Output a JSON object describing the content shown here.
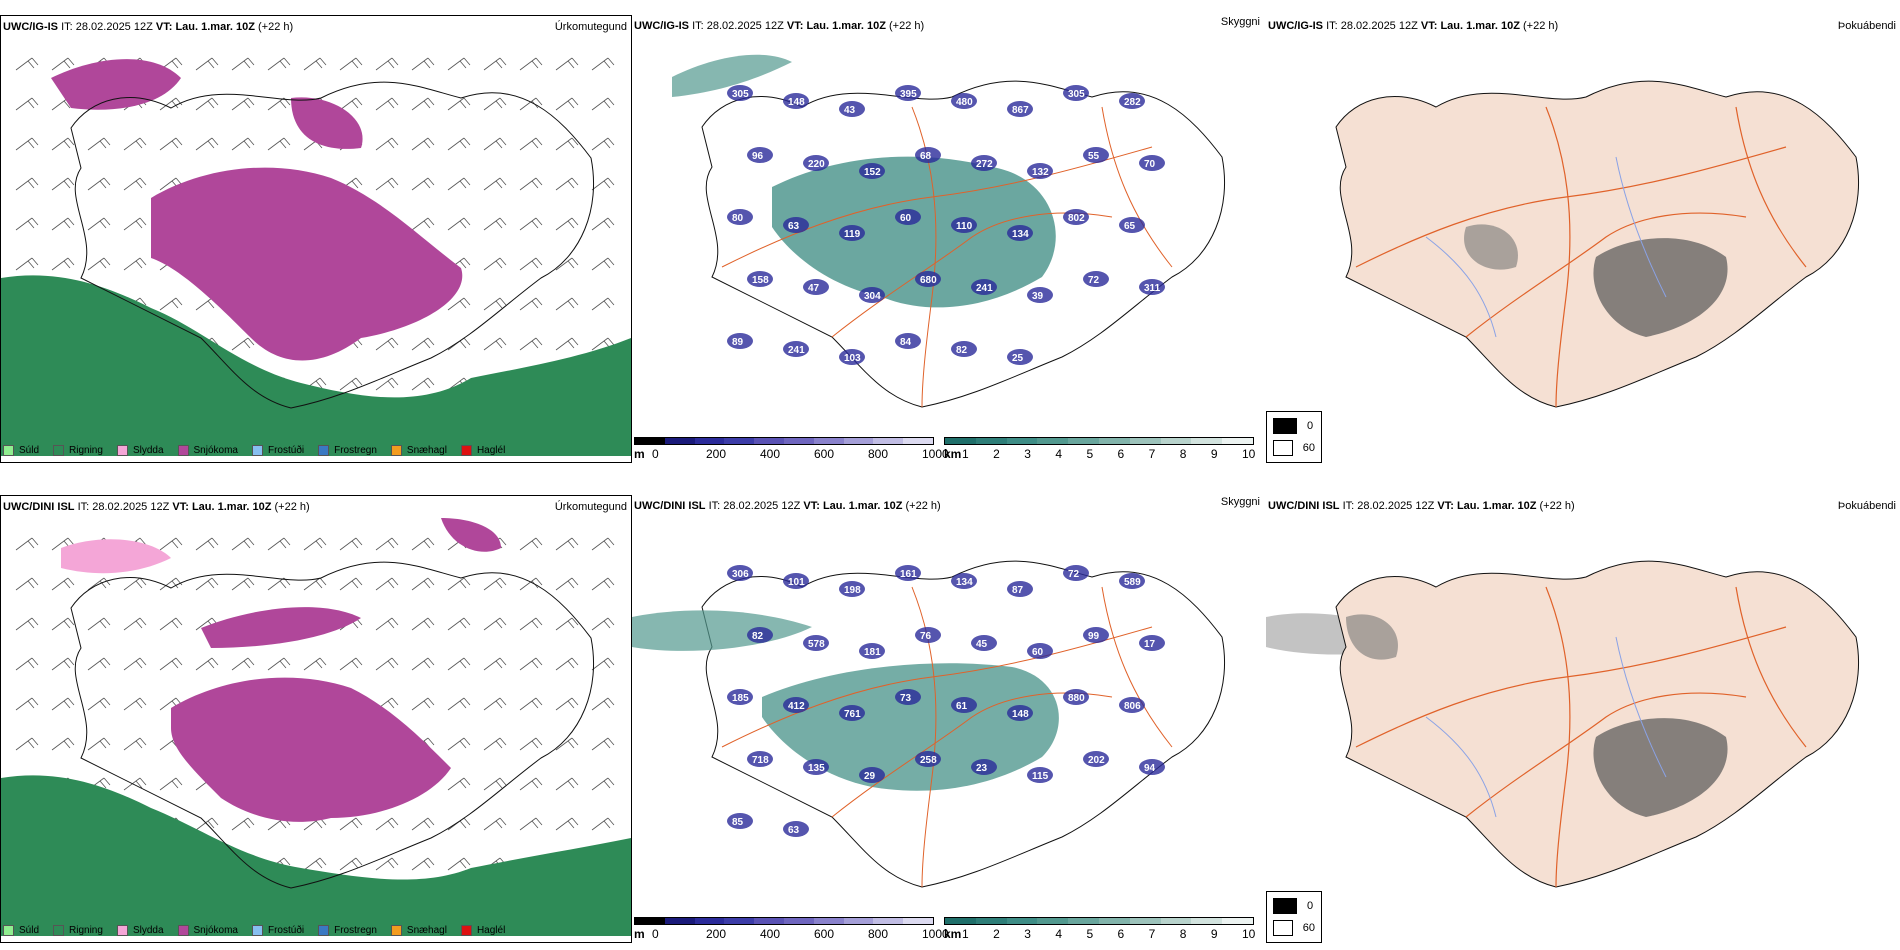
{
  "rows": [
    {
      "precip": {
        "model": "UWC/IG-IS",
        "it_label": "IT:",
        "it": "28.02.2025 12Z",
        "vt_label": "VT:",
        "vt": "Lau. 1.mar. 10Z",
        "lead": "(+22 h)",
        "title": "Úrkomutegund"
      },
      "cloud": {
        "model": "UWC/IG-IS",
        "it_label": "IT:",
        "it": "28.02.2025 12Z",
        "vt_label": "VT:",
        "vt": "Lau. 1.mar. 10Z",
        "lead": "(+22 h)",
        "title": "Skyggni"
      },
      "fog": {
        "model": "UWC/IG-IS",
        "it_label": "IT:",
        "it": "28.02.2025 12Z",
        "vt_label": "VT:",
        "vt": "Lau. 1.mar. 10Z",
        "lead": "(+22 h)",
        "title": "Þokuábendi"
      },
      "labels": [
        "305",
        "148",
        "43",
        "395",
        "480",
        "867",
        "305",
        "282",
        "96",
        "220",
        "152",
        "68",
        "272",
        "132",
        "55",
        "70",
        "80",
        "63",
        "119",
        "60",
        "110",
        "134",
        "802",
        "65",
        "158",
        "47",
        "304",
        "680",
        "241",
        "39",
        "72",
        "311",
        "89",
        "241",
        "103",
        "84",
        "82",
        "25"
      ]
    },
    {
      "precip": {
        "model": "UWC/DINI ISL",
        "it_label": "IT:",
        "it": "28.02.2025 12Z",
        "vt_label": "VT:",
        "vt": "Lau. 1.mar. 10Z",
        "lead": "(+22 h)",
        "title": "Úrkomutegund"
      },
      "cloud": {
        "model": "UWC/DINI ISL",
        "it_label": "IT:",
        "it": "28.02.2025 12Z",
        "vt_label": "VT:",
        "vt": "Lau. 1.mar. 10Z",
        "lead": "(+22 h)",
        "title": "Skyggni"
      },
      "fog": {
        "model": "UWC/DINI ISL",
        "it_label": "IT:",
        "it": "28.02.2025 12Z",
        "vt_label": "VT:",
        "vt": "Lau. 1.mar. 10Z",
        "lead": "(+22 h)",
        "title": "Þokuábendi"
      },
      "labels": [
        "306",
        "101",
        "198",
        "161",
        "134",
        "87",
        "72",
        "589",
        "82",
        "578",
        "181",
        "76",
        "45",
        "60",
        "99",
        "17",
        "185",
        "412",
        "761",
        "73",
        "61",
        "148",
        "880",
        "806",
        "718",
        "135",
        "29",
        "258",
        "23",
        "115",
        "202",
        "94",
        "85",
        "63"
      ]
    }
  ],
  "precip_legend": [
    {
      "label": "Súld",
      "color": "#90ee90"
    },
    {
      "label": "Rigning",
      "color": "#2e8b57"
    },
    {
      "label": "Slydda",
      "color": "#f4a6d7"
    },
    {
      "label": "Snjókoma",
      "color": "#b0479a"
    },
    {
      "label": "Frostúði",
      "color": "#87bff0"
    },
    {
      "label": "Frostregn",
      "color": "#3a78c2"
    },
    {
      "label": "Snæhagl",
      "color": "#f39c1f"
    },
    {
      "label": "Haglél",
      "color": "#dd1111"
    }
  ],
  "ceiling_bar": {
    "unit": "m",
    "ticks": [
      "0",
      "200",
      "400",
      "600",
      "800",
      "1000"
    ],
    "colors": [
      "#000000",
      "#1a1a7a",
      "#2b2b9a",
      "#3c3ca8",
      "#5a52b4",
      "#6f66bf",
      "#8a82cc",
      "#a59fd8",
      "#c1bde4",
      "#dcdaf0"
    ]
  },
  "vis_bar": {
    "unit": "km",
    "ticks": [
      "1",
      "2",
      "3",
      "4",
      "5",
      "6",
      "7",
      "8",
      "9",
      "10"
    ],
    "colors": [
      "#1f6f6a",
      "#2e7e78",
      "#3e8d86",
      "#52998f",
      "#69a69d",
      "#82b4ab",
      "#9dc3bb",
      "#b8d3cc",
      "#d2e3de",
      "#ecf3f1"
    ]
  },
  "fog_legend": [
    {
      "label": "0",
      "color": "#000000"
    },
    {
      "label": "60",
      "color": "#ffffff"
    }
  ],
  "colors": {
    "land": "#f5e0d3",
    "road": "#e0622a",
    "river": "#8aa2e6",
    "snow": "#b0479a",
    "rain": "#2e8b57",
    "cloud": "#3a8a80",
    "low": "#2b2b9a"
  }
}
